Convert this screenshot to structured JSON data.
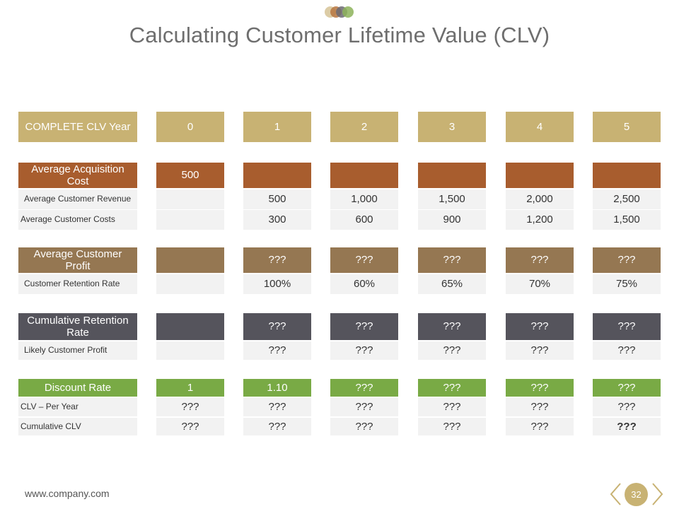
{
  "title": "Calculating Customer Lifetime Value (CLV)",
  "header": {
    "label": "COMPLETE CLV Year",
    "years": [
      "0",
      "1",
      "2",
      "3",
      "4",
      "5"
    ]
  },
  "rows": {
    "acq_cost": {
      "label": "Average Acquisition Cost",
      "values": [
        "500",
        "",
        "",
        "",
        "",
        ""
      ]
    },
    "revenue": {
      "label": "Average Customer Revenue",
      "values": [
        "",
        "500",
        "1,000",
        "1,500",
        "2,000",
        "2,500"
      ]
    },
    "costs": {
      "label": "Average Customer Costs",
      "values": [
        "",
        "300",
        "600",
        "900",
        "1,200",
        "1,500"
      ]
    },
    "profit": {
      "label": "Average Customer Profit",
      "values": [
        "",
        "???",
        "???",
        "???",
        "???",
        "???"
      ]
    },
    "retention": {
      "label": "Customer Retention Rate",
      "values": [
        "",
        "100%",
        "60%",
        "65%",
        "70%",
        "75%"
      ]
    },
    "cum_retention": {
      "label": "Cumulative Retention Rate",
      "values": [
        "",
        "???",
        "???",
        "???",
        "???",
        "???"
      ]
    },
    "likely_profit": {
      "label": "Likely Customer Profit",
      "values": [
        "",
        "???",
        "???",
        "???",
        "???",
        "???"
      ]
    },
    "discount": {
      "label": "Discount Rate",
      "values": [
        "1",
        "1.10",
        "???",
        "???",
        "???",
        "???"
      ]
    },
    "clv_year": {
      "label": "CLV – Per Year",
      "values": [
        "???",
        "???",
        "???",
        "???",
        "???",
        "???"
      ]
    },
    "cum_clv": {
      "label": "Cumulative CLV",
      "values": [
        "???",
        "???",
        "???",
        "???",
        "???",
        "???"
      ]
    }
  },
  "footer": {
    "url": "www.company.com",
    "page": "32"
  },
  "colors": {
    "gold": "#c8b273",
    "brown": "#a85d2e",
    "tan": "#957752",
    "slate": "#55545c",
    "green": "#79aa45"
  }
}
